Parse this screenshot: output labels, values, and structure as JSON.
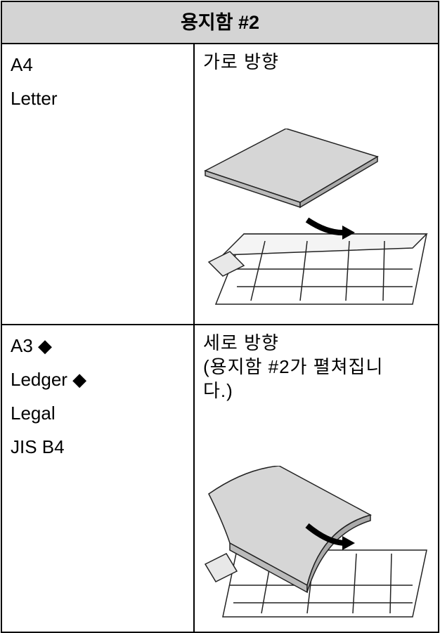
{
  "header": {
    "title": "용지함 #2"
  },
  "table": {
    "rows": [
      {
        "sizes": [
          "A4",
          "Letter"
        ],
        "orientation": "가로 방향"
      },
      {
        "sizes": [
          "A3 ◆",
          "Ledger ◆",
          "Legal",
          "JIS B4"
        ],
        "orientation": "세로 방향",
        "note": "(용지함 #2가 펼쳐집니다.)"
      }
    ]
  }
}
